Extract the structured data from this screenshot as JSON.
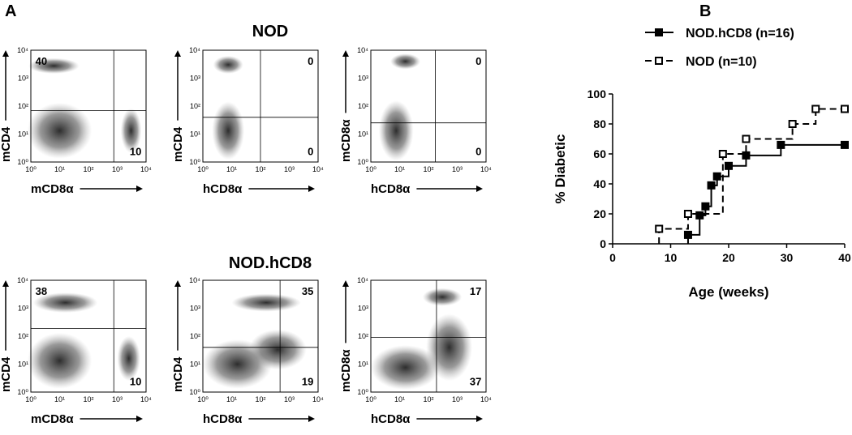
{
  "panel_a": {
    "label": "A",
    "tick_labels": [
      "10⁰",
      "10¹",
      "10²",
      "10³",
      "10⁴"
    ],
    "groups": [
      {
        "title": "NOD",
        "plots": [
          {
            "x_label": "mCD8α",
            "y_label": "mCD4",
            "upper_left": 40,
            "lower_right": 10
          },
          {
            "x_label": "hCD8α",
            "y_label": "mCD4",
            "upper_right": 0,
            "lower_right": 0
          },
          {
            "x_label": "hCD8α",
            "y_label": "mCD8α",
            "upper_right": 0,
            "lower_right": 0
          }
        ]
      },
      {
        "title": "NOD.hCD8",
        "plots": [
          {
            "x_label": "mCD8α",
            "y_label": "mCD4",
            "upper_left": 38,
            "lower_right": 10
          },
          {
            "x_label": "hCD8α",
            "y_label": "mCD4",
            "upper_right": 35,
            "lower_right": 19
          },
          {
            "x_label": "hCD8α",
            "y_label": "mCD8α",
            "upper_right": 17,
            "lower_right": 37
          }
        ]
      }
    ]
  },
  "chart_data": {
    "type": "step",
    "label": "B",
    "x_label": "Age (weeks)",
    "y_label": "% Diabetic",
    "xlim": [
      0,
      40
    ],
    "ylim": [
      0,
      100
    ],
    "xticks": [
      0,
      10,
      20,
      30,
      40
    ],
    "yticks": [
      0,
      20,
      40,
      60,
      80,
      100
    ],
    "series": [
      {
        "name": "NOD.hCD8 (n=16)",
        "color": "#000000",
        "dashed": false,
        "marker_filled": true,
        "x": [
          13,
          15,
          16,
          17,
          18,
          20,
          23,
          29,
          40
        ],
        "values": [
          6,
          19,
          25,
          39,
          45,
          52,
          59,
          66,
          66
        ]
      },
      {
        "name": "NOD (n=10)",
        "color": "#000000",
        "dashed": true,
        "marker_filled": false,
        "x": [
          8,
          13,
          19,
          23,
          31,
          35,
          40
        ],
        "values": [
          10,
          20,
          60,
          70,
          80,
          90,
          90
        ]
      }
    ]
  }
}
